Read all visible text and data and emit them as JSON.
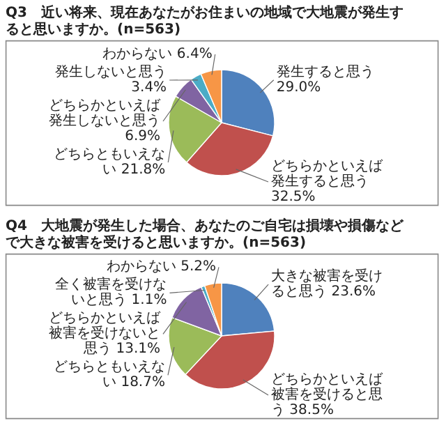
{
  "chart_data": [
    {
      "type": "pie",
      "title": "Q3　近い将来、現在あなたがお住まいの地域で大地震が発生すると思いますか。(n=563)",
      "categories": [
        "発生すると思う",
        "どちらかといえば発生すると思う",
        "どちらともいえない",
        "どちらかといえば発生しないと思う",
        "発生しないと思う",
        "わからない"
      ],
      "values": [
        29.0,
        32.5,
        21.8,
        6.9,
        3.4,
        6.4
      ],
      "value_labels": [
        "29.0%",
        "32.5%",
        "21.8%",
        "6.9%",
        "3.4%",
        "6.4%"
      ],
      "colors": [
        "#4f81bd",
        "#c0504d",
        "#9bbb59",
        "#8064a2",
        "#4bacc6",
        "#f79646"
      ]
    },
    {
      "type": "pie",
      "title": "Q4　大地震が発生した場合、あなたのご自宅は損壊や損傷などで大きな被害を受けると思いますか。(n=563)",
      "categories": [
        "大きな被害を受けると思う",
        "どちらかといえば被害を受けると思う",
        "どちらともいえない",
        "どちらかといえば被害を受けないと思う",
        "全く被害を受けないと思う",
        "わからない"
      ],
      "values": [
        23.6,
        38.5,
        18.7,
        13.1,
        1.1,
        5.2
      ],
      "value_labels": [
        "23.6%",
        "38.5%",
        "18.7%",
        "13.1%",
        "1.1%",
        "5.2%"
      ],
      "colors": [
        "#4f81bd",
        "#c0504d",
        "#9bbb59",
        "#8064a2",
        "#4bacc6",
        "#f79646"
      ]
    }
  ]
}
